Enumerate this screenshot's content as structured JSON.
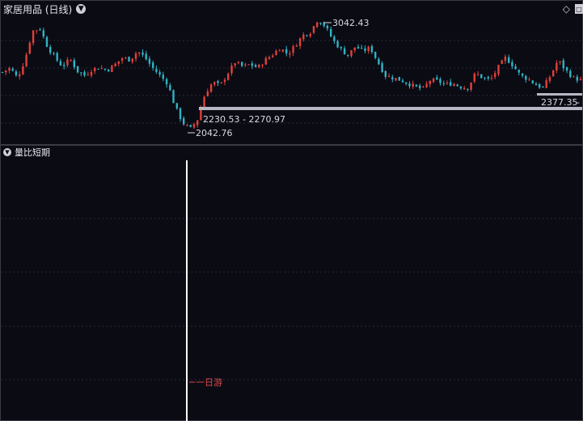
{
  "main_panel": {
    "title": "家居用品 (日线)",
    "collapse_icon": "chevron-down-icon",
    "right_icons": [
      "diamond-icon",
      "window-icon"
    ]
  },
  "sub_panel": {
    "title": "量比短期",
    "collapse_icon": "chevron-down-icon",
    "marker_label": "一日游"
  },
  "colors": {
    "background": "#0b0b14",
    "up_candle": "#e0413a",
    "down_candle": "#2fb4c4",
    "label_text": "#d8d8e0",
    "range_bar": "#b8b8c4",
    "signal_line": "#ffffff",
    "signal_label": "#e04a4a"
  },
  "chart_data": {
    "type": "candlestick",
    "price_labels": {
      "high": "3042.43",
      "low": "2042.76",
      "range": "2230.53 - 2270.97",
      "right_level": "2377.35"
    },
    "close_path": [
      2570,
      2610,
      2520,
      2680,
      2940,
      2960,
      2800,
      2700,
      2620,
      2690,
      2580,
      2540,
      2600,
      2610,
      2590,
      2640,
      2700,
      2680,
      2760,
      2700,
      2610,
      2540,
      2470,
      2260,
      2120,
      2060,
      2150,
      2380,
      2480,
      2450,
      2560,
      2660,
      2620,
      2640,
      2610,
      2680,
      2730,
      2790,
      2730,
      2810,
      2900,
      2930,
      3042,
      2980,
      2860,
      2780,
      2720,
      2800,
      2760,
      2790,
      2660,
      2540,
      2520,
      2500,
      2470,
      2440,
      2420,
      2500,
      2490,
      2460,
      2470,
      2440,
      2430,
      2560,
      2520,
      2500,
      2610,
      2700,
      2630,
      2540,
      2510,
      2460,
      2430,
      2540,
      2680,
      2590,
      2520,
      2500
    ]
  }
}
